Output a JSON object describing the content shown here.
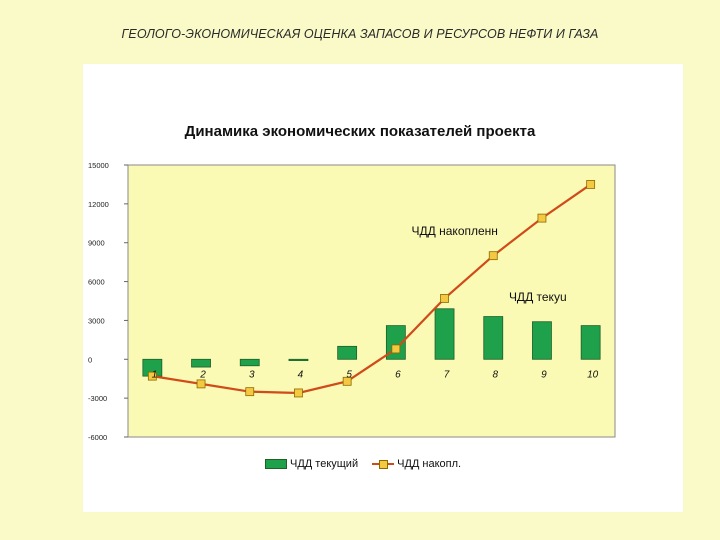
{
  "header": {
    "title": "ГЕОЛОГО-ЭКОНОМИЧЕСКАЯ ОЦЕНКА ЗАПАСОВ И РЕСУРСОВ НЕФТИ И ГАЗА"
  },
  "colors": {
    "page_bg": "#fafac8",
    "plot_bg": "#fafab4",
    "bar_fill": "#1fa04a",
    "bar_stroke": "#1f5f2a",
    "line": "#d04a1a",
    "marker": "#f5c842"
  },
  "chart_data": {
    "type": "bar",
    "title": "Динамика экономических показателей проекта",
    "xlabel": "",
    "ylabel": "",
    "categories": [
      "1",
      "2",
      "3",
      "4",
      "5",
      "6",
      "7",
      "8",
      "9",
      "10"
    ],
    "ylim": [
      -6000,
      15000
    ],
    "yticks": [
      -6000,
      -3000,
      0,
      3000,
      6000,
      9000,
      12000,
      15000
    ],
    "grid": false,
    "legend_position": "bottom",
    "series": [
      {
        "name": "ЧДД текущий",
        "type": "bar",
        "values": [
          -1300,
          -600,
          -500,
          -100,
          1000,
          2600,
          3900,
          3300,
          2900,
          2600
        ]
      },
      {
        "name": "ЧДД накопл.",
        "type": "line",
        "values": [
          -1300,
          -1900,
          -2500,
          -2600,
          -1700,
          800,
          4700,
          8000,
          10900,
          13500
        ]
      }
    ],
    "annotations": [
      {
        "text": "ЧДД накопленн",
        "category": "7",
        "y": 9900
      },
      {
        "text": "ЧДД текуu",
        "category": "9",
        "y": 4800
      }
    ]
  }
}
